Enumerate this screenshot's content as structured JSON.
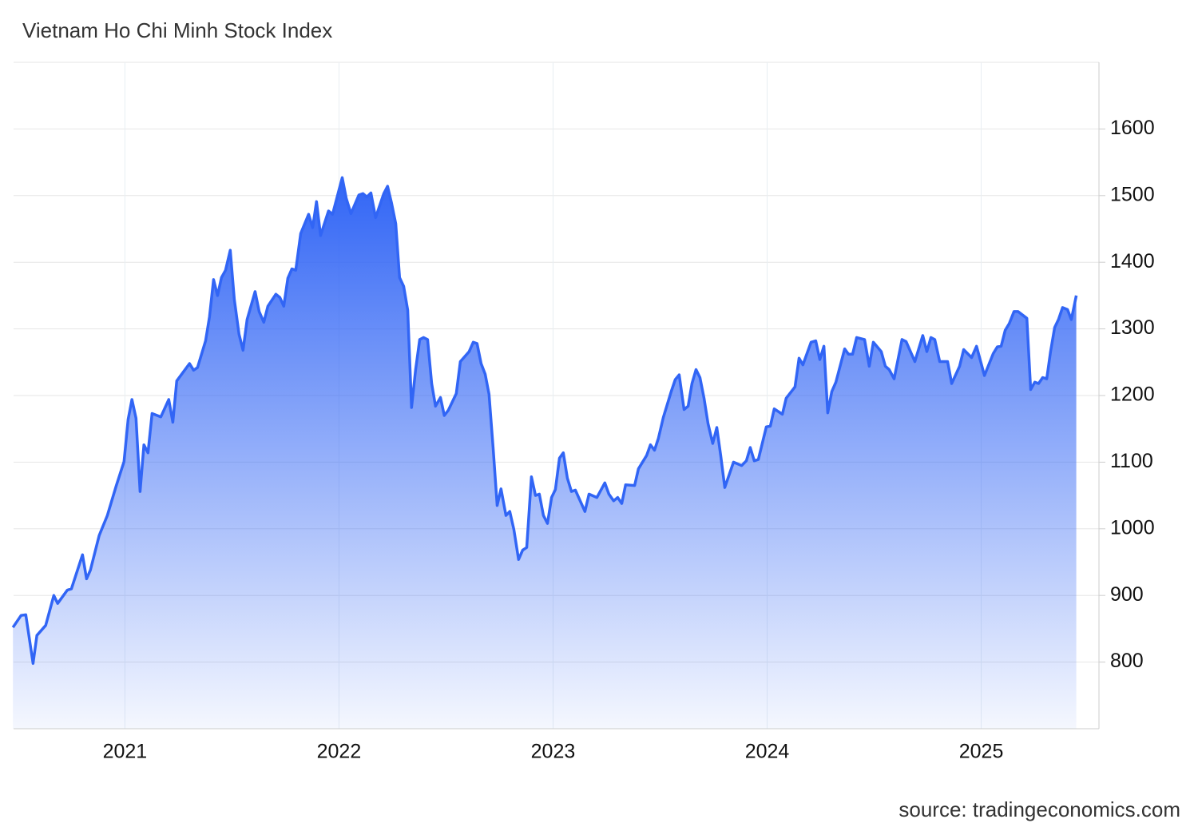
{
  "chart_data": {
    "type": "area",
    "title": "Vietnam Ho Chi Minh Stock Index",
    "source": "source: tradingeconomics.com",
    "color": "#3165f5",
    "grid": true,
    "xlim": [
      2020.48,
      2025.55
    ],
    "xticks": [
      2021,
      2022,
      2023,
      2024,
      2025
    ],
    "ylim": [
      700,
      1700
    ],
    "yticks": [
      800,
      900,
      1000,
      1100,
      1200,
      1300,
      1400,
      1500,
      1600
    ],
    "x": [
      2020.477,
      2020.515,
      2020.537,
      2020.571,
      2020.589,
      2020.63,
      2020.668,
      2020.686,
      2020.731,
      2020.75,
      2020.802,
      2020.821,
      2020.839,
      2020.88,
      2020.918,
      2020.959,
      2020.996,
      2021.015,
      2021.033,
      2021.052,
      2021.071,
      2021.089,
      2021.108,
      2021.127,
      2021.168,
      2021.205,
      2021.224,
      2021.242,
      2021.302,
      2021.321,
      2021.339,
      2021.377,
      2021.395,
      2021.414,
      2021.433,
      2021.451,
      2021.47,
      2021.492,
      2021.511,
      2021.533,
      2021.552,
      2021.571,
      2021.608,
      2021.627,
      2021.649,
      2021.668,
      2021.705,
      2021.724,
      2021.742,
      2021.761,
      2021.78,
      2021.798,
      2021.821,
      2021.858,
      2021.877,
      2021.895,
      2021.914,
      2021.951,
      2021.97,
      2022.015,
      2022.034,
      2022.056,
      2022.093,
      2022.112,
      2022.13,
      2022.149,
      2022.171,
      2022.209,
      2022.227,
      2022.246,
      2022.265,
      2022.283,
      2022.302,
      2022.321,
      2022.339,
      2022.358,
      2022.377,
      2022.395,
      2022.414,
      2022.433,
      2022.451,
      2022.474,
      2022.492,
      2022.511,
      2022.548,
      2022.567,
      2022.608,
      2022.627,
      2022.645,
      2022.664,
      2022.683,
      2022.701,
      2022.72,
      2022.739,
      2022.757,
      2022.78,
      2022.798,
      2022.817,
      2022.839,
      2022.858,
      2022.877,
      2022.899,
      2022.918,
      2022.936,
      2022.955,
      2022.974,
      2022.993,
      2023.011,
      2023.03,
      2023.048,
      2023.067,
      2023.086,
      2023.104,
      2023.149,
      2023.168,
      2023.205,
      2023.242,
      2023.261,
      2023.283,
      2023.302,
      2023.321,
      2023.339,
      2023.381,
      2023.399,
      2023.437,
      2023.455,
      2023.474,
      2023.492,
      2023.515,
      2023.552,
      2023.571,
      2023.589,
      2023.612,
      2023.631,
      2023.649,
      2023.668,
      2023.686,
      2023.705,
      2023.724,
      2023.746,
      2023.765,
      2023.783,
      2023.802,
      2023.843,
      2023.881,
      2023.903,
      2023.921,
      2023.94,
      2023.959,
      2023.996,
      2024.015,
      2024.033,
      2024.071,
      2024.089,
      2024.13,
      2024.149,
      2024.167,
      2024.205,
      2024.227,
      2024.246,
      2024.265,
      2024.283,
      2024.302,
      2024.321,
      2024.362,
      2024.38,
      2024.399,
      2024.418,
      2024.455,
      2024.477,
      2024.496,
      2024.533,
      2024.552,
      2024.57,
      2024.593,
      2024.63,
      2024.649,
      2024.69,
      2024.727,
      2024.746,
      2024.765,
      2024.783,
      2024.806,
      2024.843,
      2024.862,
      2024.899,
      2024.918,
      2024.955,
      2024.978,
      2025.015,
      2025.056,
      2025.075,
      2025.093,
      2025.112,
      2025.131,
      2025.153,
      2025.172,
      2025.213,
      2025.231,
      2025.25,
      2025.268,
      2025.287,
      2025.306,
      2025.324,
      2025.343,
      2025.361,
      2025.38,
      2025.403,
      2025.421,
      2025.444
    ],
    "values": [
      852,
      870,
      871,
      798,
      840,
      855,
      900,
      888,
      908,
      910,
      961,
      925,
      938,
      990,
      1020,
      1064,
      1101,
      1164,
      1194,
      1166,
      1056,
      1126,
      1114,
      1173,
      1168,
      1194,
      1160,
      1222,
      1248,
      1238,
      1242,
      1282,
      1318,
      1374,
      1350,
      1377,
      1388,
      1418,
      1344,
      1292,
      1268,
      1314,
      1356,
      1326,
      1310,
      1334,
      1352,
      1347,
      1334,
      1376,
      1390,
      1388,
      1443,
      1472,
      1452,
      1491,
      1440,
      1477,
      1472,
      1527,
      1496,
      1473,
      1501,
      1503,
      1498,
      1504,
      1467,
      1503,
      1514,
      1488,
      1458,
      1377,
      1364,
      1328,
      1182,
      1239,
      1284,
      1287,
      1284,
      1218,
      1184,
      1197,
      1170,
      1178,
      1203,
      1251,
      1266,
      1280,
      1278,
      1248,
      1232,
      1202,
      1122,
      1035,
      1060,
      1020,
      1026,
      999,
      954,
      968,
      972,
      1078,
      1050,
      1052,
      1020,
      1008,
      1047,
      1059,
      1106,
      1114,
      1076,
      1056,
      1058,
      1026,
      1052,
      1047,
      1069,
      1052,
      1042,
      1047,
      1038,
      1066,
      1065,
      1090,
      1110,
      1126,
      1118,
      1136,
      1167,
      1206,
      1224,
      1231,
      1179,
      1184,
      1218,
      1239,
      1227,
      1196,
      1158,
      1128,
      1152,
      1110,
      1062,
      1100,
      1095,
      1102,
      1122,
      1102,
      1104,
      1153,
      1154,
      1180,
      1172,
      1196,
      1213,
      1256,
      1246,
      1280,
      1282,
      1254,
      1274,
      1174,
      1206,
      1220,
      1270,
      1262,
      1262,
      1287,
      1284,
      1244,
      1280,
      1266,
      1244,
      1239,
      1225,
      1284,
      1281,
      1251,
      1290,
      1266,
      1287,
      1284,
      1251,
      1251,
      1218,
      1244,
      1269,
      1257,
      1274,
      1230,
      1263,
      1273,
      1274,
      1298,
      1308,
      1326,
      1326,
      1316,
      1209,
      1220,
      1218,
      1227,
      1225,
      1266,
      1302,
      1314,
      1332,
      1329,
      1314,
      1350
    ]
  }
}
